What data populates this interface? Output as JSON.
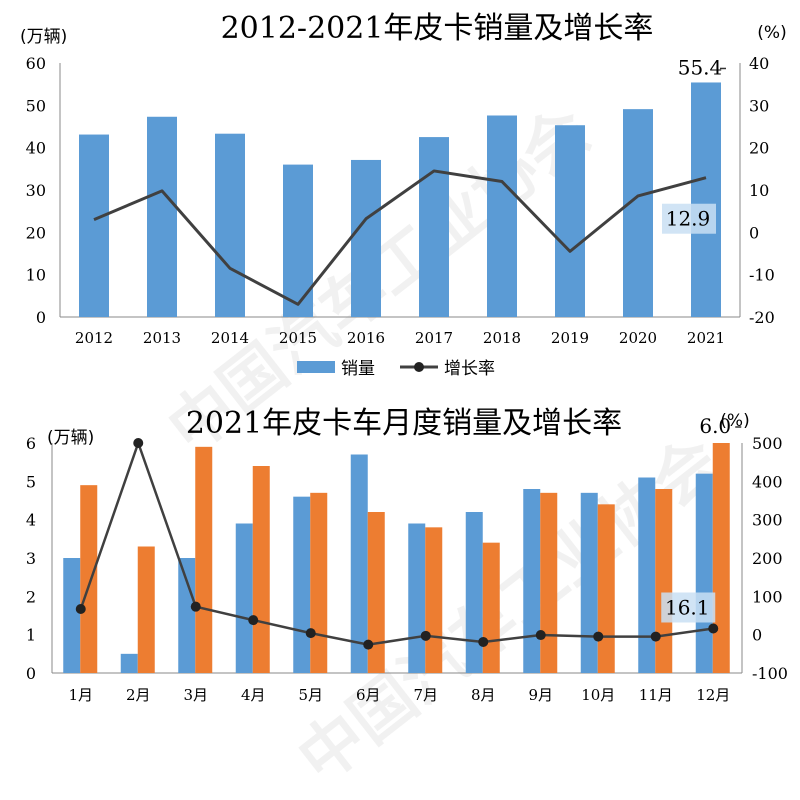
{
  "chart_data": [
    {
      "type": "bar+line",
      "title": "2012-2021年皮卡销量及增长率",
      "left_unit": "(万辆)",
      "right_unit": "(%)",
      "categories": [
        "2012",
        "2013",
        "2014",
        "2015",
        "2016",
        "2017",
        "2018",
        "2019",
        "2020",
        "2021"
      ],
      "series": [
        {
          "name": "销量",
          "type": "bar",
          "axis": "left",
          "color": "#5B9BD5",
          "values": [
            43.1,
            47.3,
            43.3,
            36.0,
            37.1,
            42.5,
            47.6,
            45.3,
            49.1,
            55.4
          ]
        },
        {
          "name": "增长率",
          "type": "line",
          "axis": "right",
          "color": "#404040",
          "values": [
            3.0,
            9.8,
            -8.5,
            -17.0,
            3.2,
            14.5,
            12.0,
            -4.5,
            8.6,
            12.9
          ]
        }
      ],
      "ylim_left": [
        0,
        60
      ],
      "yticks_left": [
        0,
        10,
        20,
        30,
        40,
        50,
        60
      ],
      "ylim_right": [
        -20,
        40
      ],
      "yticks_right": [
        -20,
        -10,
        0,
        10,
        20,
        30,
        40
      ],
      "data_labels": [
        "55.4",
        "12.9"
      ],
      "legend_position": "bottom"
    },
    {
      "type": "bar+line",
      "title": "2021年皮卡车月度销量及增长率",
      "left_unit": "(万辆)",
      "right_unit": "(%)",
      "categories": [
        "1月",
        "2月",
        "3月",
        "4月",
        "5月",
        "6月",
        "7月",
        "8月",
        "9月",
        "10月",
        "11月",
        "12月"
      ],
      "series": [
        {
          "type": "bar",
          "axis": "left",
          "color": "#5B9BD5",
          "values": [
            3.0,
            0.5,
            3.0,
            3.9,
            4.6,
            5.7,
            3.9,
            4.2,
            4.8,
            4.7,
            5.1,
            5.2
          ]
        },
        {
          "type": "bar",
          "axis": "left",
          "color": "#ED7D31",
          "values": [
            4.9,
            3.3,
            5.9,
            5.4,
            4.7,
            4.2,
            3.8,
            3.4,
            4.7,
            4.4,
            4.8,
            6.0
          ]
        },
        {
          "type": "line",
          "axis": "right",
          "color": "#404040",
          "values": [
            67,
            500,
            73,
            38,
            4,
            -26,
            -3,
            -19,
            -1,
            -5,
            -5,
            16.1
          ]
        }
      ],
      "ylim_left": [
        0,
        6
      ],
      "yticks_left": [
        0,
        1,
        2,
        3,
        4,
        5,
        6
      ],
      "ylim_right": [
        -100,
        500
      ],
      "yticks_right": [
        -100,
        0,
        100,
        200,
        300,
        400,
        500
      ],
      "data_labels": [
        "6.0",
        "16.1"
      ]
    }
  ]
}
